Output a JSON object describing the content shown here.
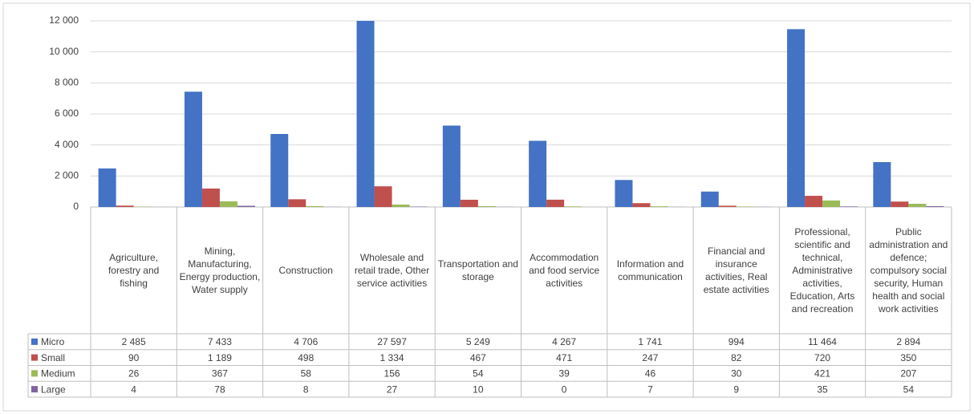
{
  "chart_data": {
    "type": "bar",
    "categories": [
      "Agriculture, forestry and fishing",
      "Mining, Manufacturing, Energy production, Water supply",
      "Construction",
      "Wholesale and retail trade, Other service activities",
      "Transportation and storage",
      "Accommodation and food service activities",
      "Information and communication",
      "Financial and insurance activities, Real estate activities",
      "Professional, scientific and technical, Administrative activities, Education, Arts and recreation",
      "Public administration and defence; compulsory social security, Human health and social work activities"
    ],
    "series": [
      {
        "name": "Micro",
        "color": "#4472c4",
        "values": [
          2485,
          7433,
          4706,
          27597,
          5249,
          4267,
          1741,
          994,
          11464,
          2894
        ],
        "value_labels": [
          "2 485",
          "7 433",
          "4 706",
          "27 597",
          "5 249",
          "4 267",
          "1 741",
          "994",
          "11 464",
          "2 894"
        ]
      },
      {
        "name": "Small",
        "color": "#c0504d",
        "values": [
          90,
          1189,
          498,
          1334,
          467,
          471,
          247,
          82,
          720,
          350
        ],
        "value_labels": [
          "90",
          "1 189",
          "498",
          "1 334",
          "467",
          "471",
          "247",
          "82",
          "720",
          "350"
        ]
      },
      {
        "name": "Medium",
        "color": "#9bbb59",
        "values": [
          26,
          367,
          58,
          156,
          54,
          39,
          46,
          30,
          421,
          207
        ],
        "value_labels": [
          "26",
          "367",
          "58",
          "156",
          "54",
          "39",
          "46",
          "30",
          "421",
          "207"
        ]
      },
      {
        "name": "Large",
        "color": "#8064a2",
        "values": [
          4,
          78,
          8,
          27,
          10,
          0,
          7,
          9,
          35,
          54
        ],
        "value_labels": [
          "4",
          "78",
          "8",
          "27",
          "10",
          "0",
          "7",
          "9",
          "35",
          "54"
        ]
      }
    ],
    "ylim": [
      0,
      12000
    ],
    "yticks": [
      0,
      {
        "value": 2000,
        "label": "2 000"
      },
      {
        "value": 4000,
        "label": "4 000"
      },
      {
        "value": 6000,
        "label": "6 000"
      },
      {
        "value": 8000,
        "label": "8 000"
      },
      {
        "value": 10000,
        "label": "10 000"
      },
      {
        "value": 12000,
        "label": "12 000"
      }
    ],
    "grid": true
  }
}
